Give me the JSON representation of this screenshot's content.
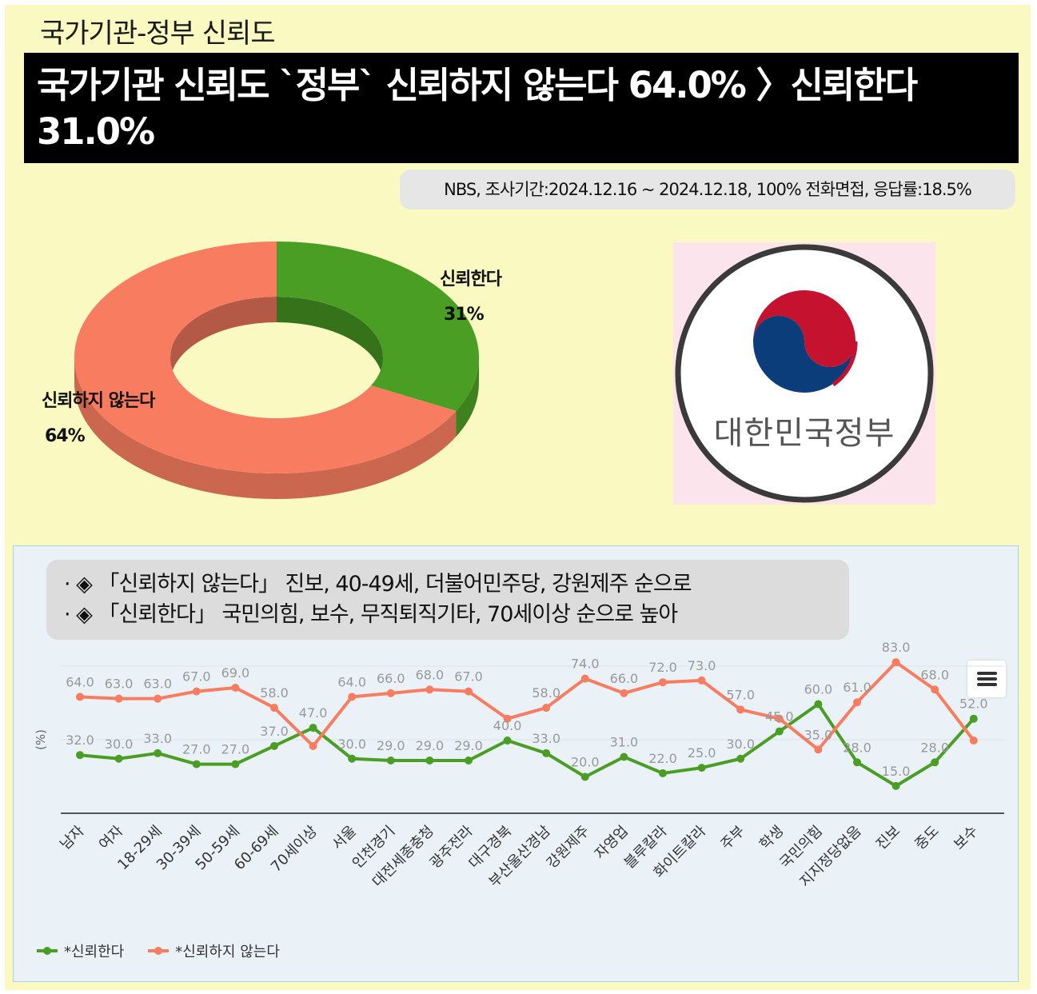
{
  "header": {
    "subtitle": "국가기관-정부 신뢰도",
    "headline": "국가기관 신뢰도 `정부` 신뢰하지 않는다 64.0% 〉신뢰한다 31.0%",
    "source": "NBS, 조사기간:2024.12.16 ~ 2024.12.18, 100% 전화면접, 응답률:18.5%"
  },
  "logo": {
    "text": "대한민국정부"
  },
  "callout": {
    "line1": "· ◈ 「신뢰하지 않는다」 진보, 40-49세, 더불어민주당, 강원제주 순으로",
    "line2": "· ◈ 「신뢰한다」 국민의힘, 보수, 무직퇴직기타, 70세이상 순으로 높아"
  },
  "colors": {
    "trust": "#4a9e24",
    "distrust": "#f87c60",
    "background": "#f9f9c1",
    "panel": "#eaf1f7"
  },
  "chart_data": [
    {
      "type": "pie",
      "style": "3d-donut",
      "labels": [
        "신뢰한다",
        "신뢰하지 않는다"
      ],
      "values": [
        31,
        64
      ],
      "value_labels": [
        "31%",
        "64%"
      ],
      "colors": [
        "#4a9e24",
        "#f87c60"
      ]
    },
    {
      "type": "line",
      "ylabel": "(%)",
      "categories": [
        "남자",
        "여자",
        "18-29세",
        "30-39세",
        "50-59세",
        "60-69세",
        "70세이상",
        "서울",
        "인천경기",
        "대전세종충청",
        "광주전라",
        "대구경북",
        "부산울산경남",
        "강원제주",
        "자영업",
        "블루칼라",
        "화이트칼라",
        "주부",
        "학생",
        "국민의힘",
        "지지정당없음",
        "진보",
        "중도",
        "보수"
      ],
      "series": [
        {
          "name": "*신뢰한다",
          "color": "#4a9e24",
          "values": [
            32.0,
            30.0,
            33.0,
            27.0,
            27.0,
            37.0,
            47.0,
            30.0,
            29.0,
            29.0,
            29.0,
            40.0,
            33.0,
            20.0,
            31.0,
            22.0,
            25.0,
            30.0,
            45.0,
            60.0,
            28.0,
            15.0,
            28.0,
            52.0
          ]
        },
        {
          "name": "*신뢰하지 않는다",
          "color": "#f87c60",
          "values": [
            64.0,
            63.0,
            63.0,
            67.0,
            69.0,
            58.0,
            37.0,
            64.0,
            66.0,
            68.0,
            67.0,
            52.0,
            58.0,
            74.0,
            66.0,
            72.0,
            73.0,
            57.0,
            52.0,
            35.0,
            61.0,
            83.0,
            68.0,
            40.0
          ]
        }
      ],
      "point_labels": [
        [
          "32.0",
          "30.0",
          "33.0",
          "27.0",
          "27.0",
          "37.0",
          "47.0",
          "30.0",
          "29.0",
          "29.0",
          "29.0",
          "40.0",
          "33.0",
          "20.0",
          "31.0",
          "22.0",
          "25.0",
          "30.0",
          "45.0",
          "60.0",
          "28.0",
          "15.0",
          "28.0",
          "52.0"
        ],
        [
          "64.0",
          "63.0",
          "63.0",
          "67.0",
          "69.0",
          "58.0",
          "",
          "64.0",
          "66.0",
          "68.0",
          "67.0",
          "",
          "58.0",
          "74.0",
          "66.0",
          "72.0",
          "73.0",
          "57.0",
          "",
          "35.0",
          "61.0",
          "83.0",
          "68.0",
          ""
        ]
      ],
      "ylim": [
        0,
        100
      ],
      "legend": "bottom-left",
      "grid": false
    }
  ]
}
